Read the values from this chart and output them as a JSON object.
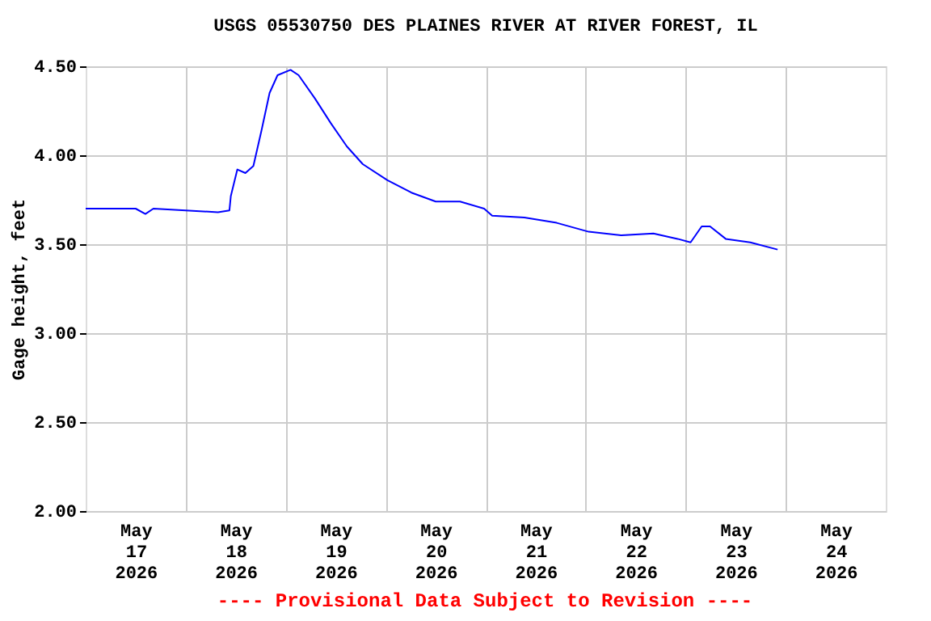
{
  "chart_data": {
    "type": "line",
    "title": "USGS 05530750 DES PLAINES RIVER AT RIVER FOREST, IL",
    "ylabel": "Gage height, feet",
    "annotations": [
      "---- Provisional Data Subject to Revision ----"
    ],
    "x": [
      "2026-05-17T00:00",
      "2026-05-17T12:00",
      "2026-05-17T14:20",
      "2026-05-17T16:15",
      "2026-05-18T00:00",
      "2026-05-18T07:45",
      "2026-05-18T10:30",
      "2026-05-18T10:50",
      "2026-05-18T12:24",
      "2026-05-18T14:20",
      "2026-05-18T16:15",
      "2026-05-18T18:12",
      "2026-05-18T20:08",
      "2026-05-18T22:03",
      "2026-05-19T01:10",
      "2026-05-19T03:06",
      "2026-05-19T07:00",
      "2026-05-19T10:50",
      "2026-05-19T14:40",
      "2026-05-19T18:30",
      "2026-05-20T00:25",
      "2026-05-20T06:10",
      "2026-05-20T12:00",
      "2026-05-20T17:50",
      "2026-05-20T23:37",
      "2026-05-21T01:33",
      "2026-05-21T09:17",
      "2026-05-21T17:02",
      "2026-05-22T00:43",
      "2026-05-22T08:31",
      "2026-05-22T16:15",
      "2026-05-22T22:03",
      "2026-05-23T01:10",
      "2026-05-23T03:50",
      "2026-05-23T05:50",
      "2026-05-23T09:36",
      "2026-05-23T15:29",
      "2026-05-23T22:03"
    ],
    "series": [
      {
        "color": "#0000ff",
        "values": [
          3.7,
          3.7,
          3.67,
          3.7,
          3.69,
          3.68,
          3.69,
          3.77,
          3.92,
          3.9,
          3.94,
          4.14,
          4.35,
          4.45,
          4.48,
          4.45,
          4.32,
          4.18,
          4.05,
          3.95,
          3.86,
          3.79,
          3.74,
          3.74,
          3.7,
          3.66,
          3.65,
          3.62,
          3.57,
          3.55,
          3.56,
          3.53,
          3.51,
          3.6,
          3.6,
          3.53,
          3.51,
          3.47
        ]
      }
    ],
    "xlim": [
      "2026-05-17T00:00",
      "2026-05-25T00:00"
    ],
    "xticks": [
      {
        "value": "2026-05-17T12:00",
        "label": "May\n17\n2026"
      },
      {
        "value": "2026-05-18T00:00",
        "label": null
      },
      {
        "value": "2026-05-18T12:00",
        "label": "May\n18\n2026"
      },
      {
        "value": "2026-05-19T00:00",
        "label": null
      },
      {
        "value": "2026-05-19T12:00",
        "label": "May\n19\n2026"
      },
      {
        "value": "2026-05-20T00:00",
        "label": null
      },
      {
        "value": "2026-05-20T12:00",
        "label": "May\n20\n2026"
      },
      {
        "value": "2026-05-21T00:00",
        "label": null
      },
      {
        "value": "2026-05-21T12:00",
        "label": "May\n21\n2026"
      },
      {
        "value": "2026-05-22T00:00",
        "label": null
      },
      {
        "value": "2026-05-22T12:00",
        "label": "May\n22\n2026"
      },
      {
        "value": "2026-05-23T00:00",
        "label": null
      },
      {
        "value": "2026-05-23T12:00",
        "label": "May\n23\n2026"
      },
      {
        "value": "2026-05-24T00:00",
        "label": null
      },
      {
        "value": "2026-05-24T12:00",
        "label": "May\n24\n2026"
      }
    ],
    "ylim": [
      2.0,
      4.5
    ],
    "yticks": [
      {
        "value": 2.0,
        "label": "2.00"
      },
      {
        "value": 2.5,
        "label": "2.50"
      },
      {
        "value": 3.0,
        "label": "3.00"
      },
      {
        "value": 3.5,
        "label": "3.50"
      },
      {
        "value": 4.0,
        "label": "4.00"
      },
      {
        "value": 4.5,
        "label": "4.50"
      }
    ],
    "grid": true,
    "legend": false,
    "marker": "none",
    "line_style": "solid"
  }
}
